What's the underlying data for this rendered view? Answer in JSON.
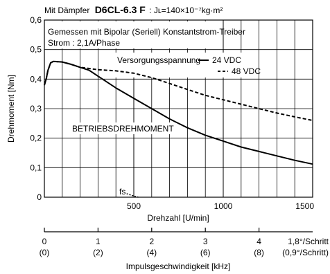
{
  "title": {
    "prefix": "Mit Dämpfer",
    "model": "D6CL-6.3 F",
    "inertia": ": Jʟ=140×10⁻⁷kg·m²"
  },
  "annotations": {
    "driver": "Gemessen mit Bipolar (Seriell) Konstantstrom-Treiber",
    "current": "Strom : 2,1A/Phase",
    "supply_heading": "Versorgungsspannung",
    "operating_label": "BETRIEBSDREHMOMENT",
    "fs_label": "fs"
  },
  "chart_data": {
    "type": "line",
    "xlabel": "Drehzahl [U/min]",
    "ylabel": "Drehmoment [Nm]",
    "xlim": [
      0,
      1500
    ],
    "ylim": [
      0,
      0.6
    ],
    "grid": true,
    "legend_position": "top-right",
    "x_ticks": [
      {
        "value": 500,
        "label": "500"
      },
      {
        "value": 1000,
        "label": "1000"
      },
      {
        "value": 1500,
        "label": "1500"
      }
    ],
    "y_ticks": [
      {
        "value": 0,
        "label": "0"
      },
      {
        "value": 0.1,
        "label": "0,1"
      },
      {
        "value": 0.2,
        "label": "0,2"
      },
      {
        "value": 0.3,
        "label": "0,3"
      },
      {
        "value": 0.4,
        "label": "0,4"
      },
      {
        "value": 0.5,
        "label": "0,5"
      },
      {
        "value": 0.6,
        "label": "0,6"
      }
    ],
    "series": [
      {
        "name": "24 VDC",
        "style": "solid",
        "points": [
          [
            0,
            0.38
          ],
          [
            10,
            0.4
          ],
          [
            20,
            0.43
          ],
          [
            35,
            0.455
          ],
          [
            50,
            0.46
          ],
          [
            100,
            0.458
          ],
          [
            150,
            0.45
          ],
          [
            200,
            0.44
          ],
          [
            250,
            0.43
          ],
          [
            300,
            0.41
          ],
          [
            400,
            0.37
          ],
          [
            500,
            0.335
          ],
          [
            600,
            0.3
          ],
          [
            700,
            0.265
          ],
          [
            800,
            0.235
          ],
          [
            900,
            0.21
          ],
          [
            1000,
            0.19
          ],
          [
            1100,
            0.17
          ],
          [
            1200,
            0.155
          ],
          [
            1300,
            0.14
          ],
          [
            1400,
            0.125
          ],
          [
            1500,
            0.112
          ]
        ]
      },
      {
        "name": "48 VDC",
        "style": "dashed",
        "points": [
          [
            0,
            0.38
          ],
          [
            10,
            0.4
          ],
          [
            20,
            0.43
          ],
          [
            35,
            0.455
          ],
          [
            50,
            0.46
          ],
          [
            100,
            0.458
          ],
          [
            150,
            0.45
          ],
          [
            200,
            0.44
          ],
          [
            300,
            0.432
          ],
          [
            400,
            0.428
          ],
          [
            500,
            0.42
          ],
          [
            600,
            0.405
          ],
          [
            700,
            0.385
          ],
          [
            800,
            0.365
          ],
          [
            900,
            0.345
          ],
          [
            1000,
            0.33
          ],
          [
            1100,
            0.315
          ],
          [
            1200,
            0.3
          ],
          [
            1300,
            0.285
          ],
          [
            1400,
            0.272
          ],
          [
            1500,
            0.26
          ]
        ]
      }
    ],
    "fs_curve": {
      "points": [
        [
          460,
          0.012
        ],
        [
          475,
          0.009
        ],
        [
          490,
          0.006
        ],
        [
          510,
          0.002
        ],
        [
          525,
          0.0
        ]
      ]
    }
  },
  "secondary_axis": {
    "xlabel": "Impulsgeschwindigkeit [kHz]",
    "ticks": [
      {
        "rpm": 0,
        "label": "0",
        "sub": "(0)"
      },
      {
        "rpm": 300,
        "label": "1",
        "sub": "(2)"
      },
      {
        "rpm": 600,
        "label": "2",
        "sub": "(4)"
      },
      {
        "rpm": 900,
        "label": "3",
        "sub": "(6)"
      },
      {
        "rpm": 1200,
        "label": "4",
        "sub": "(8)"
      }
    ],
    "step_label": "1,8°/Schritt",
    "step_sub": "(0,9°/Schritt)"
  },
  "colors": {
    "line": "#000000",
    "grid": "#000000",
    "background": "#ffffff"
  }
}
